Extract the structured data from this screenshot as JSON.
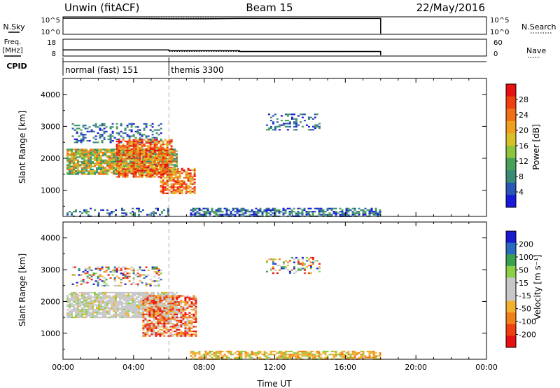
{
  "header": {
    "title": "Unwin (fitACF)",
    "beam": "Beam 15",
    "date": "22/May/2016"
  },
  "labels": {
    "nsky": "N.Sky",
    "nsearch": "N.Search",
    "freq_line1": "Freq.",
    "freq_line2": "[MHz]",
    "nave": "Nave",
    "cpid": "CPID"
  },
  "ticks": {
    "noise_left_top": "10^5",
    "noise_left_bottom": "10^0",
    "noise_right_top": "10^5",
    "noise_right_bottom": "10^0",
    "freq_left_top": "18",
    "freq_left_bottom": "8",
    "nave_right_top": "60",
    "nave_right_bottom": "0"
  },
  "cpid_labels": [
    {
      "text": "normal (fast) 151",
      "start_hour": 0
    },
    {
      "text": "themis 3300",
      "start_hour": 6
    }
  ],
  "colors": {
    "power": [
      "#1a1adc",
      "#2a56b4",
      "#3a8a78",
      "#4aa05a",
      "#8cc43c",
      "#d8c028",
      "#f0a020",
      "#f07018",
      "#f04010",
      "#e81010"
    ],
    "velocity": [
      "#e81010",
      "#f04010",
      "#f08018",
      "#f0b030",
      "#c8c8c8",
      "#c8c8c8",
      "#8cd048",
      "#3aa050",
      "#2a6cc0",
      "#1a1ad0"
    ],
    "marker_line": "#b0b0b0"
  },
  "chart_data": [
    {
      "type": "line",
      "panel": "noise",
      "series": [
        {
          "name": "N.Sky",
          "x": [
            0,
            2,
            4,
            6,
            8,
            10,
            12,
            14,
            16,
            18
          ],
          "y": [
            5,
            5,
            4.9,
            4.8,
            4.8,
            4.9,
            4.9,
            4.9,
            4.9,
            4.9
          ]
        },
        {
          "name": "N.Search",
          "x": [
            0,
            18
          ],
          "y": [
            5,
            5
          ]
        }
      ],
      "xlim": [
        0,
        24
      ],
      "ylim": [
        0,
        5
      ]
    },
    {
      "type": "line",
      "panel": "frequency-nave",
      "series": [
        {
          "name": "Freq.",
          "x": [
            0,
            6,
            6,
            10,
            10,
            18
          ],
          "y": [
            11.5,
            11.5,
            11.0,
            11.0,
            10.5,
            10.5
          ]
        },
        {
          "name": "Nave",
          "x": [
            0,
            6,
            6,
            10,
            10,
            18
          ],
          "y": [
            21,
            21,
            15,
            15,
            14,
            14
          ]
        }
      ],
      "xlim": [
        0,
        24
      ],
      "freq_ylim": [
        8,
        18
      ],
      "nave_ylim": [
        0,
        60
      ]
    },
    {
      "type": "heatmap",
      "panel": "power",
      "xlabel": "",
      "ylabel": "Slant Range [km]",
      "xlim": [
        0,
        24
      ],
      "ylim": [
        180,
        4500
      ],
      "yticks": [
        1000,
        2000,
        3000,
        4000
      ],
      "colorbar_label": "Power [dB]",
      "colorbar_ticks": [
        "28",
        "24",
        "20",
        "16",
        "12",
        "8",
        "4"
      ],
      "regions": [
        {
          "t0": 0.2,
          "t1": 6.5,
          "r0": 1500,
          "r1": 2300,
          "density": 0.85,
          "level": "mid"
        },
        {
          "t0": 0.5,
          "t1": 5.5,
          "r0": 2500,
          "r1": 3100,
          "density": 0.35,
          "level": "low"
        },
        {
          "t0": 3.0,
          "t1": 6.2,
          "r0": 1400,
          "r1": 2600,
          "density": 0.75,
          "level": "high"
        },
        {
          "t0": 5.5,
          "t1": 7.5,
          "r0": 900,
          "r1": 1700,
          "density": 0.7,
          "level": "high"
        },
        {
          "t0": 7.2,
          "t1": 18.0,
          "r0": 200,
          "r1": 450,
          "density": 0.6,
          "level": "low"
        },
        {
          "t0": 0.2,
          "t1": 6.0,
          "r0": 200,
          "r1": 450,
          "density": 0.25,
          "level": "low"
        },
        {
          "t0": 11.5,
          "t1": 14.5,
          "r0": 2900,
          "r1": 3400,
          "density": 0.3,
          "level": "low"
        }
      ]
    },
    {
      "type": "heatmap",
      "panel": "velocity",
      "xlabel": "Time UT",
      "ylabel": "Slant Range [km]",
      "xlim": [
        0,
        24
      ],
      "ylim": [
        180,
        4500
      ],
      "xticks": [
        "00:00",
        "04:00",
        "08:00",
        "12:00",
        "16:00",
        "20:00",
        "00:00"
      ],
      "yticks": [
        1000,
        2000,
        3000,
        4000
      ],
      "colorbar_label": "Velocity [m s⁻¹]",
      "colorbar_ticks": [
        "200",
        "100",
        "50",
        "15",
        "-15",
        "-50",
        "-100",
        "-200"
      ],
      "regions": [
        {
          "t0": 0.2,
          "t1": 6.5,
          "r0": 1500,
          "r1": 2300,
          "density": 0.85,
          "level": "gray"
        },
        {
          "t0": 0.5,
          "t1": 5.5,
          "r0": 2500,
          "r1": 3100,
          "density": 0.35,
          "level": "mixed"
        },
        {
          "t0": 4.5,
          "t1": 7.5,
          "r0": 900,
          "r1": 2200,
          "density": 0.7,
          "level": "negative"
        },
        {
          "t0": 7.2,
          "t1": 18.0,
          "r0": 200,
          "r1": 450,
          "density": 0.6,
          "level": "negative-green"
        },
        {
          "t0": 11.5,
          "t1": 14.5,
          "r0": 2900,
          "r1": 3400,
          "density": 0.3,
          "level": "mixed"
        }
      ]
    }
  ]
}
